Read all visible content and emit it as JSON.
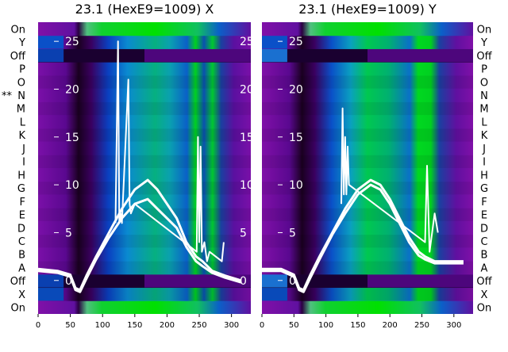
{
  "chart_data": [
    {
      "type": "heatmap",
      "title": "23.1 (HexE9=1009) X",
      "xticks": [
        0,
        50,
        100,
        150,
        200,
        250,
        300
      ],
      "xlim": [
        0,
        330
      ],
      "yticks": [
        0,
        5,
        10,
        15,
        20,
        25
      ],
      "ylim": [
        -3.5,
        27
      ],
      "row_labels": [
        "On",
        "X",
        "Off",
        "A",
        "B",
        "C",
        "D",
        "E",
        "F",
        "G",
        "H",
        "I",
        "J",
        "K",
        "L",
        "M",
        "N",
        "O",
        "P",
        "Off",
        "Y",
        "On"
      ],
      "marked_row": "N",
      "marker_text": "**",
      "overlay_series": [
        {
          "x": [
            0,
            30,
            50,
            58,
            65,
            75,
            90,
            110,
            130,
            150,
            170,
            185,
            200,
            215,
            230,
            245,
            255,
            270,
            290,
            315
          ],
          "y": [
            1.2,
            1,
            0.6,
            -0.8,
            -1,
            0.5,
            2.5,
            5,
            7.5,
            9.5,
            10.5,
            9.5,
            8,
            6.5,
            4,
            2.5,
            2,
            1,
            0.5,
            0
          ]
        },
        {
          "x": [
            0,
            30,
            50,
            58,
            65,
            75,
            90,
            110,
            130,
            150,
            170,
            185,
            200,
            215,
            230,
            245,
            255,
            270,
            290,
            315
          ],
          "y": [
            1,
            0.8,
            0.4,
            -1,
            -1.2,
            0.2,
            2.2,
            4.5,
            6.5,
            8,
            8.5,
            7.5,
            6.5,
            5.5,
            3.5,
            2,
            1.5,
            0.8,
            0.3,
            -0.2
          ]
        },
        {
          "x": [
            120,
            124,
            126,
            128,
            130,
            140,
            142,
            144,
            150,
            246,
            248,
            250,
            252,
            254,
            258,
            262,
            266,
            285,
            288
          ],
          "y": [
            6,
            25,
            6,
            7,
            6,
            21,
            8,
            7,
            8,
            3,
            15,
            4,
            14,
            3,
            4,
            2,
            3,
            2,
            4
          ]
        }
      ]
    },
    {
      "type": "heatmap",
      "title": "23.1 (HexE9=1009) Y",
      "xticks": [
        0,
        50,
        100,
        150,
        200,
        250,
        300
      ],
      "xlim": [
        0,
        330
      ],
      "yticks": [
        0,
        5,
        10,
        15,
        20,
        25
      ],
      "ylim": [
        -3.5,
        27
      ],
      "row_labels": [
        "On",
        "X",
        "Off",
        "A",
        "B",
        "C",
        "D",
        "E",
        "F",
        "G",
        "H",
        "I",
        "J",
        "K",
        "L",
        "M",
        "N",
        "O",
        "P",
        "Off",
        "Y",
        "On"
      ],
      "overlay_series": [
        {
          "x": [
            0,
            30,
            50,
            58,
            65,
            75,
            90,
            110,
            130,
            150,
            170,
            185,
            200,
            215,
            230,
            245,
            255,
            270,
            290,
            315
          ],
          "y": [
            1.2,
            1.2,
            0.6,
            -0.8,
            -1,
            0.5,
            2.5,
            5,
            7.5,
            9.5,
            10.5,
            10,
            8.5,
            6.5,
            4.5,
            3,
            2.5,
            2,
            2,
            2
          ]
        },
        {
          "x": [
            0,
            30,
            50,
            58,
            65,
            75,
            90,
            110,
            130,
            150,
            170,
            185,
            200,
            215,
            230,
            245,
            255,
            270,
            290,
            315
          ],
          "y": [
            1,
            1,
            0.4,
            -1,
            -1.2,
            0.2,
            2.2,
            4.8,
            7,
            9,
            10,
            9.5,
            8,
            6,
            4,
            2.6,
            2.2,
            1.8,
            1.8,
            1.8
          ]
        },
        {
          "x": [
            124,
            126,
            128,
            130,
            132,
            134,
            136,
            255,
            258,
            262,
            266,
            270,
            275
          ],
          "y": [
            8,
            18,
            9,
            15,
            9,
            14,
            10,
            4,
            12,
            3,
            5,
            7,
            5
          ]
        }
      ]
    }
  ],
  "colors": {
    "purple": "#8010a8",
    "dark_purple": "#2a0038",
    "blue": "#0a50c8",
    "teal": "#0aa0a0",
    "green": "#00d820",
    "line": "#ffffff"
  }
}
